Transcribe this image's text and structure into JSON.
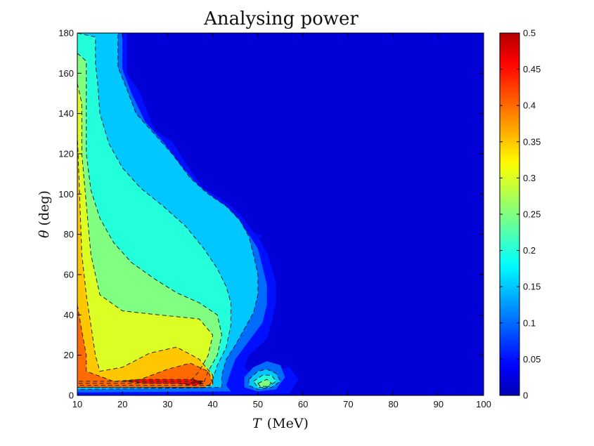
{
  "chart_data": {
    "type": "heatmap",
    "title": "Analysing power",
    "xlabel_symbol": "T",
    "xlabel_unit": "(MeV)",
    "ylabel_symbol": "θ",
    "ylabel_unit": "(deg)",
    "xlim": [
      10,
      100
    ],
    "ylim": [
      0,
      180
    ],
    "x_ticks": [
      10,
      20,
      30,
      40,
      50,
      60,
      70,
      80,
      90,
      100
    ],
    "y_ticks": [
      0,
      20,
      40,
      60,
      80,
      100,
      120,
      140,
      160,
      180
    ],
    "colorbar": {
      "range": [
        0,
        0.5
      ],
      "ticks": [
        0,
        0.05,
        0.1,
        0.15,
        0.2,
        0.25,
        0.3,
        0.35,
        0.4,
        0.45,
        0.5
      ],
      "colormap": "jet"
    },
    "contour_levels": [
      0.05,
      0.1,
      0.15,
      0.2,
      0.25,
      0.3,
      0.35,
      0.4,
      0.45
    ],
    "contour_style": "dashed",
    "regions": [
      {
        "level": 0.05,
        "points": [
          [
            10,
            180
          ],
          [
            21,
            180
          ],
          [
            21,
            160
          ],
          [
            24,
            150
          ],
          [
            27,
            132
          ],
          [
            31,
            126
          ],
          [
            35,
            112
          ],
          [
            38,
            103
          ],
          [
            43,
            96
          ],
          [
            46,
            90
          ],
          [
            48,
            84
          ],
          [
            50,
            79
          ],
          [
            52,
            71
          ],
          [
            53,
            64
          ],
          [
            54,
            56
          ],
          [
            54,
            46
          ],
          [
            53,
            36
          ],
          [
            52,
            28
          ],
          [
            50,
            24
          ],
          [
            48,
            20
          ],
          [
            47,
            14
          ],
          [
            49,
            10
          ],
          [
            57,
            14
          ],
          [
            59,
            8
          ],
          [
            57,
            1
          ],
          [
            44,
            0.5
          ],
          [
            10,
            0
          ]
        ]
      },
      {
        "level": 0.1,
        "points": [
          [
            10,
            180
          ],
          [
            20,
            180
          ],
          [
            20,
            162
          ],
          [
            22,
            150
          ],
          [
            25,
            136
          ],
          [
            29,
            126
          ],
          [
            33,
            114
          ],
          [
            37,
            104
          ],
          [
            41,
            97
          ],
          [
            44,
            92
          ],
          [
            46,
            86
          ],
          [
            48,
            80
          ],
          [
            50,
            73
          ],
          [
            51,
            64
          ],
          [
            52,
            55
          ],
          [
            52,
            45
          ],
          [
            51,
            36
          ],
          [
            49,
            30
          ],
          [
            47,
            24
          ],
          [
            45,
            18
          ],
          [
            44,
            12
          ],
          [
            43,
            5
          ],
          [
            44,
            2
          ],
          [
            10,
            1.5
          ]
        ]
      },
      {
        "level": 0.15,
        "points": [
          [
            10,
            180
          ],
          [
            19,
            180
          ],
          [
            19,
            163
          ],
          [
            21,
            152
          ],
          [
            23,
            140
          ],
          [
            27,
            130
          ],
          [
            31,
            120
          ],
          [
            35,
            108
          ],
          [
            39,
            100
          ],
          [
            43,
            94
          ],
          [
            46,
            87
          ],
          [
            48,
            79
          ],
          [
            49,
            70
          ],
          [
            50,
            60
          ],
          [
            50,
            50
          ],
          [
            49,
            41
          ],
          [
            47,
            33
          ],
          [
            45,
            25
          ],
          [
            43,
            18
          ],
          [
            42,
            10
          ],
          [
            42,
            4
          ],
          [
            10,
            3
          ]
        ]
      },
      {
        "level": 0.2,
        "points": [
          [
            10,
            180
          ],
          [
            14,
            178
          ],
          [
            14,
            165
          ],
          [
            14.5,
            155
          ],
          [
            15,
            140
          ],
          [
            17,
            125
          ],
          [
            20,
            113
          ],
          [
            24,
            103
          ],
          [
            29,
            94
          ],
          [
            34,
            84
          ],
          [
            38,
            73
          ],
          [
            41,
            63
          ],
          [
            43,
            54
          ],
          [
            44,
            46
          ],
          [
            44,
            35
          ],
          [
            43,
            24
          ],
          [
            41,
            15
          ],
          [
            40,
            8
          ],
          [
            39,
            4
          ],
          [
            10,
            4
          ]
        ]
      },
      {
        "level": 0.25,
        "points": [
          [
            10,
            170
          ],
          [
            12,
            166
          ],
          [
            12,
            140
          ],
          [
            12,
            120
          ],
          [
            13,
            102
          ],
          [
            15,
            88
          ],
          [
            18,
            76
          ],
          [
            22,
            66
          ],
          [
            27,
            58
          ],
          [
            32,
            51
          ],
          [
            37,
            46
          ],
          [
            41,
            40
          ],
          [
            42,
            30
          ],
          [
            41,
            20
          ],
          [
            39,
            12
          ],
          [
            38,
            6
          ],
          [
            10,
            6
          ]
        ]
      },
      {
        "level": 0.3,
        "points": [
          [
            10,
            155
          ],
          [
            11,
            145
          ],
          [
            11,
            120
          ],
          [
            12,
            95
          ],
          [
            13,
            70
          ],
          [
            15,
            50
          ],
          [
            20,
            42
          ],
          [
            28,
            40
          ],
          [
            37,
            38
          ],
          [
            40,
            30
          ],
          [
            39,
            20
          ],
          [
            37,
            12
          ],
          [
            35,
            7
          ],
          [
            10,
            7
          ]
        ]
      },
      {
        "level": 0.35,
        "points": [
          [
            10,
            130
          ],
          [
            10.5,
            100
          ],
          [
            11,
            70
          ],
          [
            12,
            50
          ],
          [
            13,
            35
          ],
          [
            14,
            20
          ],
          [
            15,
            12
          ],
          [
            20,
            14
          ],
          [
            26,
            21
          ],
          [
            32,
            24
          ],
          [
            37,
            18
          ],
          [
            40,
            10
          ],
          [
            40,
            5
          ],
          [
            10,
            5
          ]
        ]
      },
      {
        "level": 0.4,
        "points": [
          [
            10,
            45
          ],
          [
            11,
            32
          ],
          [
            12,
            20
          ],
          [
            12,
            12
          ],
          [
            18,
            7
          ],
          [
            24,
            8
          ],
          [
            30,
            13
          ],
          [
            35,
            16
          ],
          [
            39,
            12
          ],
          [
            40,
            6
          ],
          [
            38,
            4
          ],
          [
            10,
            4
          ]
        ]
      },
      {
        "level": 0.45,
        "points": [
          [
            20,
            7
          ],
          [
            26,
            6
          ],
          [
            32,
            6
          ],
          [
            36,
            5
          ],
          [
            38,
            6
          ],
          [
            36,
            8
          ],
          [
            30,
            8
          ],
          [
            24,
            8
          ]
        ]
      },
      {
        "level": 0.5,
        "points": [
          [
            35,
            6.2
          ],
          [
            37,
            6
          ],
          [
            38,
            7
          ],
          [
            36,
            7.6
          ]
        ]
      },
      {
        "level": 0.1,
        "points": [
          [
            47,
            9
          ],
          [
            49,
            14
          ],
          [
            52,
            17
          ],
          [
            55,
            15
          ],
          [
            56,
            9
          ],
          [
            54,
            3
          ],
          [
            50,
            2
          ],
          [
            47,
            4
          ]
        ]
      },
      {
        "level": 0.15,
        "points": [
          [
            48,
            8
          ],
          [
            50,
            12
          ],
          [
            52,
            13
          ],
          [
            54,
            11
          ],
          [
            55,
            7
          ],
          [
            53,
            4
          ],
          [
            50,
            3
          ],
          [
            48,
            5
          ]
        ]
      },
      {
        "level": 0.2,
        "points": [
          [
            49,
            7
          ],
          [
            51,
            10
          ],
          [
            53,
            10
          ],
          [
            54,
            7
          ],
          [
            52,
            4
          ],
          [
            50,
            4
          ]
        ]
      },
      {
        "level": 0.25,
        "points": [
          [
            50,
            6
          ],
          [
            52,
            8
          ],
          [
            53,
            6
          ],
          [
            52,
            4.5
          ],
          [
            50.5,
            4.5
          ]
        ]
      },
      {
        "level": 0.05,
        "points": [
          [
            49.5,
            79
          ],
          [
            50.5,
            80
          ],
          [
            51,
            79
          ],
          [
            50.5,
            78.5
          ]
        ]
      }
    ]
  }
}
